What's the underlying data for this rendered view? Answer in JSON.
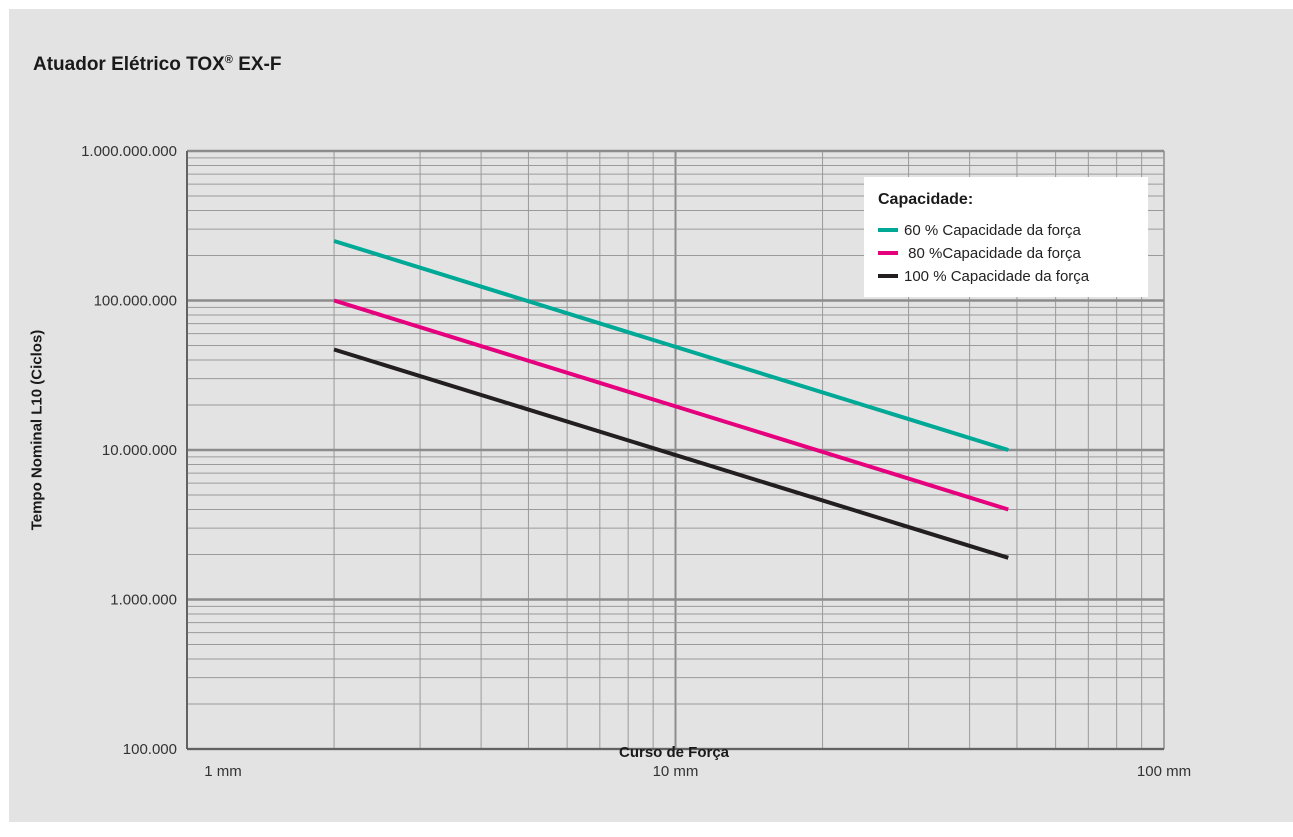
{
  "chart_data": {
    "type": "line",
    "title": "Atuador Elétrico TOX",
    "title_mark": "®",
    "title_suffix": "EX-F",
    "xlabel": "Curso de Força",
    "ylabel": "Tempo Nominal L10 (Ciclos)",
    "x_scale": "log",
    "y_scale": "log",
    "xlim": [
      1,
      100
    ],
    "ylim": [
      100000,
      1000000000
    ],
    "x_ticks": [
      {
        "value": 1,
        "label": "1 mm"
      },
      {
        "value": 10,
        "label": "10 mm"
      },
      {
        "value": 100,
        "label": "100 mm"
      }
    ],
    "y_ticks": [
      {
        "value": 1000000000,
        "label": "1.000.000.000"
      },
      {
        "value": 100000000,
        "label": "100.000.000"
      },
      {
        "value": 10000000,
        "label": "10.000.000"
      },
      {
        "value": 1000000,
        "label": "1.000.000"
      },
      {
        "value": 100000,
        "label": "100.000"
      }
    ],
    "grid": true,
    "legend_title": "Capacidade:",
    "legend_position": "top-right",
    "series": [
      {
        "name": "60 % Capacidade da força",
        "color": "#00a896",
        "x": [
          2,
          48
        ],
        "y": [
          250000000,
          10000000
        ]
      },
      {
        "name": " 80 %Capacidade da força",
        "color": "#e5007d",
        "x": [
          2,
          48
        ],
        "y": [
          100000000,
          4000000
        ]
      },
      {
        "name": "100 % Capacidade da força",
        "color": "#231f20",
        "x": [
          2,
          48
        ],
        "y": [
          47000000,
          1900000
        ]
      }
    ]
  }
}
